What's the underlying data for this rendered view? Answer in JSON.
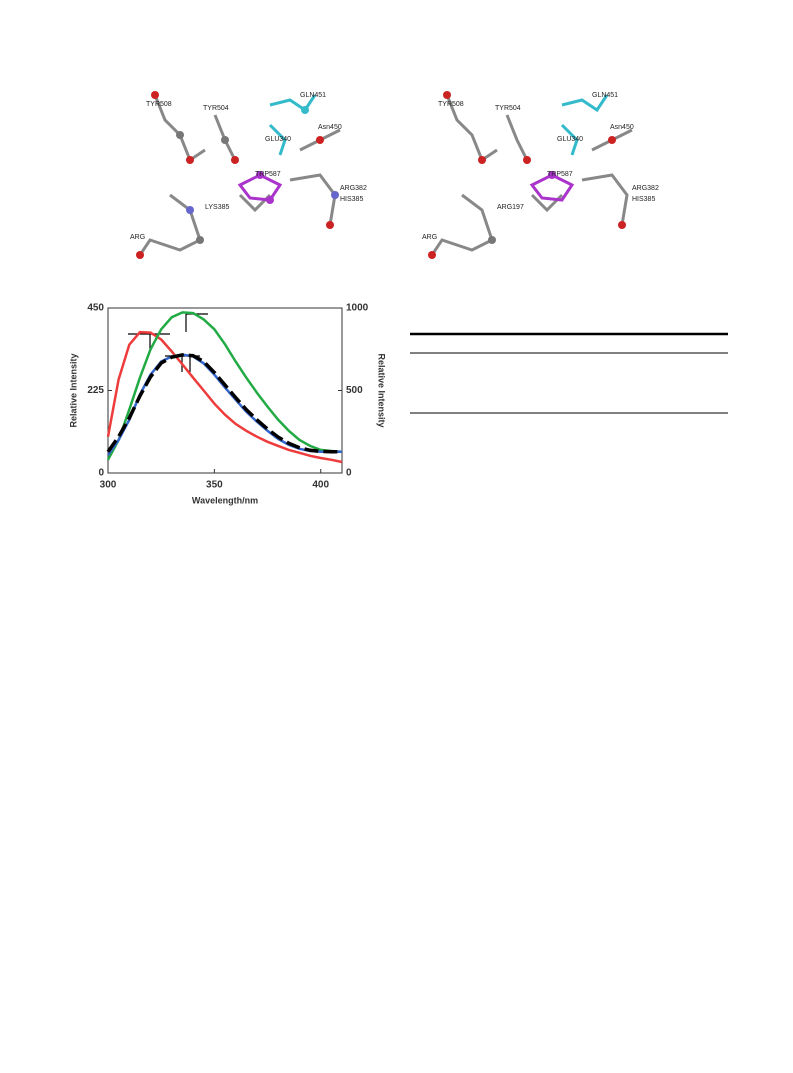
{
  "figure": {
    "left_labels": [
      "TYR508",
      "TYR504",
      "GLN451",
      "Asn450",
      "GLU340",
      "TRP587",
      "ARG382",
      "HIS385",
      "LYS385",
      "ARG"
    ],
    "right_labels": [
      "TYR508",
      "TYR504",
      "GLN451",
      "Asn450",
      "GLU340",
      "TRP587",
      "ARG382",
      "HIS385",
      "ARG197",
      "ARG"
    ]
  },
  "chart_data": {
    "type": "line",
    "x_label": "Wavelength/nm",
    "y_label": "Relative Intensity",
    "y2_label": "Relative Intensity",
    "x": [
      300,
      305,
      310,
      315,
      320,
      325,
      330,
      335,
      340,
      345,
      350,
      355,
      360,
      365,
      370,
      375,
      380,
      385,
      390,
      395,
      400,
      405,
      410
    ],
    "xlim": [
      300,
      410
    ],
    "xticks": [
      300,
      350,
      400
    ],
    "ylim": [
      0,
      450
    ],
    "yticks": [
      0,
      225,
      450
    ],
    "y2lim": [
      0,
      1000
    ],
    "y2ticks": [
      0,
      500,
      1000
    ],
    "series": [
      {
        "color": "#ee3b3b",
        "values": [
          99,
          255,
          350,
          384,
          383,
          364,
          331,
          296,
          260,
          225,
          189,
          159,
          134,
          115,
          99,
          85,
          74,
          63,
          55,
          47,
          41,
          36,
          30
        ]
      },
      {
        "color": "#22aa44",
        "values": [
          36,
          90,
          173,
          260,
          337,
          392,
          425,
          438,
          436,
          419,
          392,
          351,
          304,
          260,
          219,
          181,
          145,
          115,
          90,
          74,
          63,
          60,
          58
        ]
      },
      {
        "color": "#3366cc",
        "values": [
          49,
          90,
          145,
          214,
          268,
          304,
          318,
          323,
          318,
          299,
          268,
          233,
          200,
          167,
          140,
          115,
          93,
          77,
          66,
          60,
          58,
          58,
          58
        ]
      },
      {
        "color": "#000000",
        "dash": true,
        "values": [
          58,
          99,
          150,
          210,
          262,
          300,
          316,
          322,
          320,
          304,
          274,
          240,
          206,
          173,
          145,
          120,
          98,
          81,
          69,
          62,
          59,
          58,
          58
        ]
      }
    ]
  }
}
